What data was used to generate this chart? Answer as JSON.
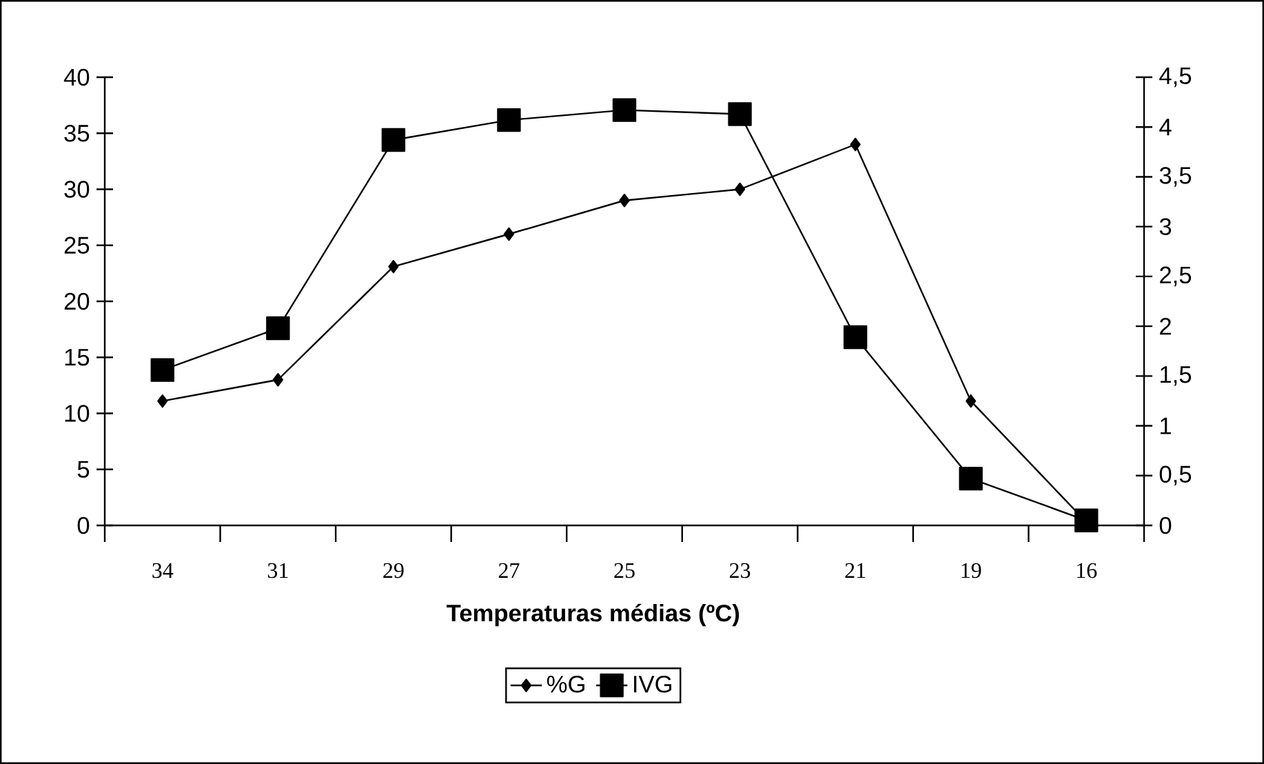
{
  "chart_data": {
    "type": "line",
    "xlabel": "Temperaturas médias (ºC)",
    "categories": [
      "34",
      "31",
      "29",
      "27",
      "25",
      "23",
      "21",
      "19",
      "16"
    ],
    "series": [
      {
        "name": "%G",
        "color": "#000000",
        "marker": "diamond",
        "values": [
          11.1,
          13,
          23.1,
          26,
          29,
          30,
          34,
          11.1,
          0.3
        ]
      },
      {
        "name": "IVG",
        "color": "#000000",
        "marker": "square",
        "axis": "y2",
        "values": [
          1.56,
          1.98,
          3.87,
          4.07,
          4.17,
          4.13,
          1.89,
          0.47,
          0.05
        ]
      }
    ],
    "ylim": [
      0,
      40
    ],
    "yticks": [
      0,
      5,
      10,
      15,
      20,
      25,
      30,
      35,
      40
    ],
    "y2lim": [
      0,
      4.5
    ],
    "y2ticks": [
      0,
      {
        "value": 0.5,
        "label": "0,5"
      },
      1,
      {
        "value": 1.5,
        "label": "1,5"
      },
      2,
      {
        "value": 2.5,
        "label": "2,5"
      },
      3,
      {
        "value": 3.5,
        "label": "3,5"
      },
      4,
      {
        "value": 4.5,
        "label": "4,5"
      }
    ],
    "legend": "bottom",
    "line_style": "solid"
  }
}
